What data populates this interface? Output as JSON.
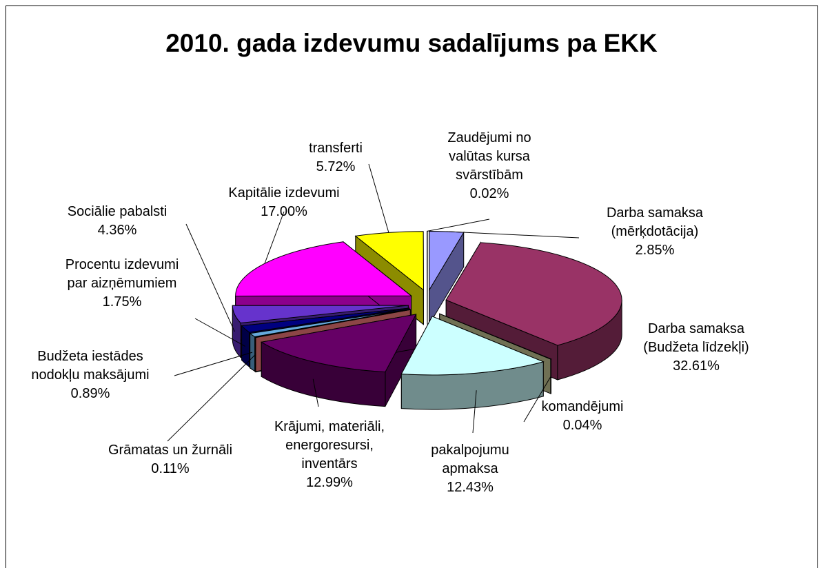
{
  "chart_data": {
    "type": "pie3d",
    "title": "2010. gada izdevumu sadalījums pa EKK",
    "categories": [
      "Darba samaksa\n(mērķdotācija)",
      "Darba samaksa\n(Budžeta līdzekļi)",
      "komandējumi",
      "pakalpojumu\napmaksa",
      "Krājumi, materiāli,\nenergoresursi,\ninventārs",
      "Grāmatas un žurnāli",
      "Budžeta iestādes\nnodokļu maksājumi",
      "Procentu izdevumi\npar aizņēmumiem",
      "Sociālie pabalsti",
      "Kapitālie izdevumi",
      "transferti",
      "Zaudējumi no\nvalūtas kursa\nsvārstībām"
    ],
    "values": [
      2.85,
      32.61,
      0.04,
      12.43,
      12.99,
      0.11,
      0.89,
      1.75,
      4.36,
      17.0,
      5.72,
      0.02
    ],
    "value_labels": [
      "2.85%",
      "32.61%",
      "0.04%",
      "12.43%",
      "12.99%",
      "0.11%",
      "0.89%",
      "1.75%",
      "4.36%",
      "17.00%",
      "5.72%",
      "0.02%"
    ],
    "colors": [
      "#9999ff",
      "#993366",
      "#cccc99",
      "#ccffff",
      "#660066",
      "#ff8080",
      "#66aadd",
      "#000080",
      "#6633cc",
      "#ff00ff",
      "#ffff00",
      "#ffffff"
    ]
  }
}
